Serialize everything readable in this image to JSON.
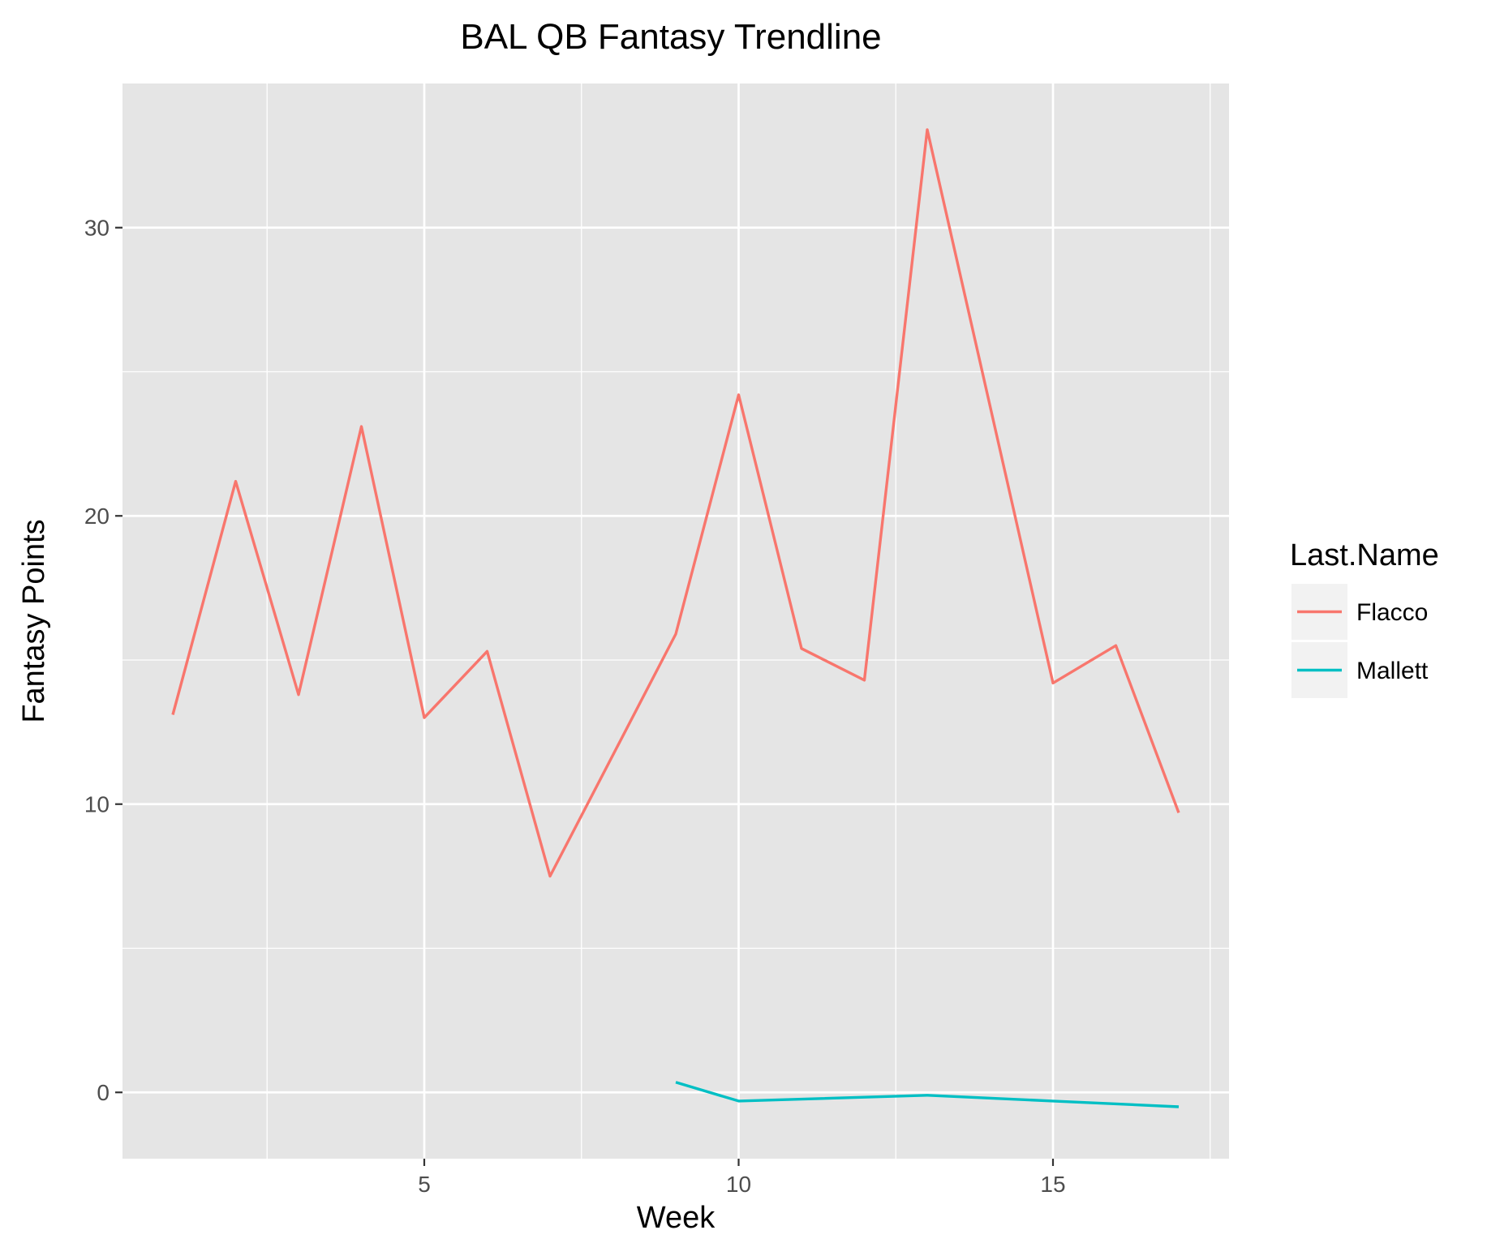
{
  "chart_data": {
    "type": "line",
    "title": "BAL QB Fantasy Trendline",
    "xlabel": "Week",
    "ylabel": "Fantasy Points",
    "xlim": [
      0.2,
      17.8
    ],
    "ylim": [
      -2.3,
      35.0
    ],
    "x_ticks": [
      5,
      10,
      15
    ],
    "x_tick_labels": [
      "5",
      "10",
      "15"
    ],
    "x_minor_ticks": [
      2.5,
      7.5,
      12.5,
      17.5
    ],
    "y_ticks": [
      0,
      10,
      20,
      30
    ],
    "y_tick_labels": [
      "0",
      "10",
      "20",
      "30"
    ],
    "y_minor_ticks": [
      5,
      15,
      25
    ],
    "grid": true,
    "panel_background": "#e5e5e5",
    "grid_color": "#ffffff",
    "legend": {
      "title": "Last.Name",
      "placement": "right",
      "entries": [
        "Flacco",
        "Mallett"
      ]
    },
    "series": [
      {
        "name": "Flacco",
        "color": "#f8766d",
        "x": [
          1,
          2,
          3,
          4,
          5,
          6,
          7,
          9,
          10,
          11,
          12,
          13,
          15,
          16,
          17
        ],
        "y": [
          13.1,
          21.2,
          13.8,
          23.1,
          13.0,
          15.3,
          7.5,
          15.9,
          24.2,
          15.4,
          14.3,
          33.4,
          14.2,
          15.5,
          9.7
        ]
      },
      {
        "name": "Mallett",
        "color": "#00bfc4",
        "x": [
          9,
          10,
          13,
          15,
          17
        ],
        "y": [
          0.35,
          -0.3,
          -0.1,
          -0.3,
          -0.5
        ]
      }
    ]
  }
}
